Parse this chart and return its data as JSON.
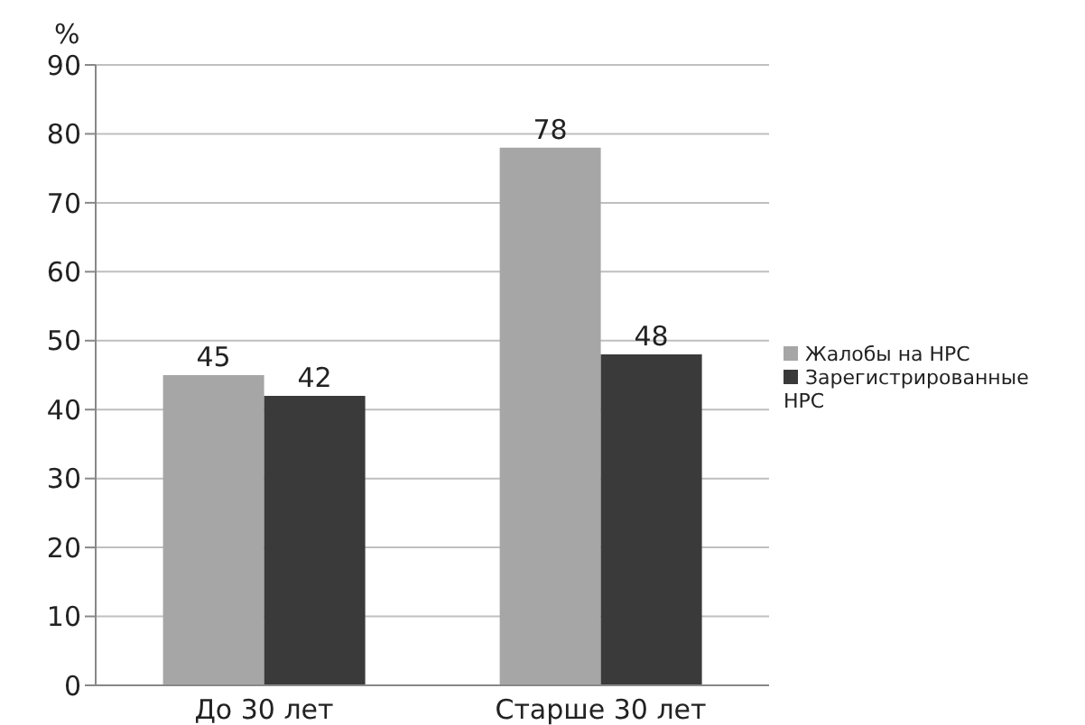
{
  "chart_data": {
    "type": "bar",
    "ylabel": "%",
    "categories": [
      "До 30 лет",
      "Старше 30 лет"
    ],
    "series": [
      {
        "name": "Жалобы на НРС",
        "color": "#a6a6a6",
        "values": [
          45,
          78
        ]
      },
      {
        "name": "Зарегистрированные НРС",
        "color": "#3a3a3a",
        "values": [
          42,
          48
        ]
      }
    ],
    "ylim": [
      0,
      90
    ],
    "yticks": [
      0,
      10,
      20,
      30,
      40,
      50,
      60,
      70,
      80,
      90
    ],
    "grid": "y",
    "legend": "right",
    "data_labels": true
  }
}
